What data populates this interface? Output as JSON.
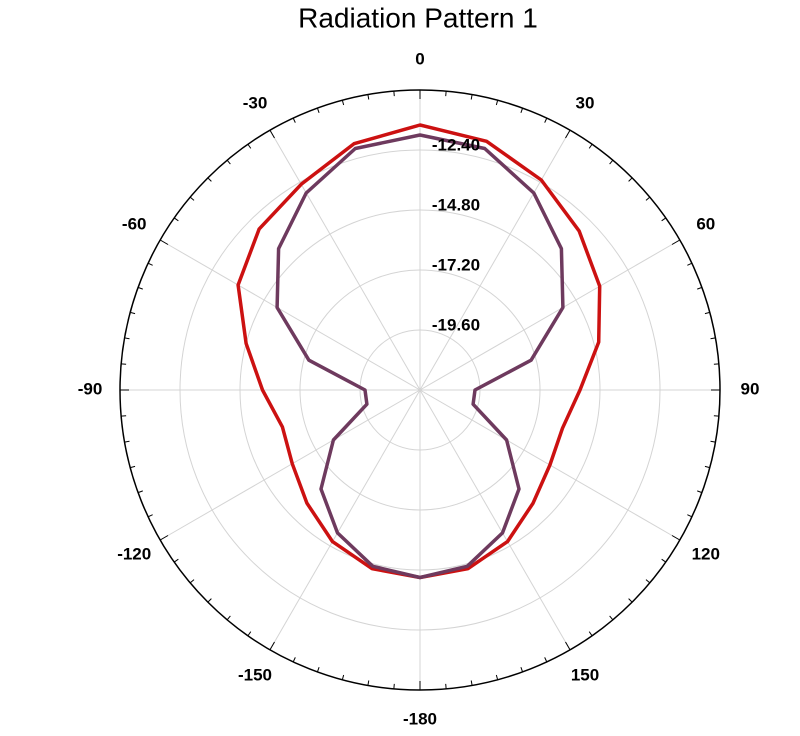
{
  "chart_data": {
    "type": "polar",
    "title": "Radiation Pattern 1",
    "direction": "clockwise",
    "zero": "top",
    "thetaticks": [
      0,
      30,
      60,
      90,
      120,
      150,
      -180,
      -150,
      -120,
      -90,
      -60,
      -30
    ],
    "rlim": [
      -22,
      -10
    ],
    "rticks": [
      {
        "value": -19.6,
        "label": "-19.60"
      },
      {
        "value": -17.2,
        "label": "-17.20"
      },
      {
        "value": -14.8,
        "label": "-14.80"
      },
      {
        "value": -12.4,
        "label": "-12.40"
      }
    ],
    "grid": true,
    "theta": [
      0,
      15,
      30,
      45,
      60,
      75,
      90,
      105,
      120,
      135,
      150,
      165,
      180,
      195,
      210,
      225,
      240,
      255,
      270,
      285,
      300,
      315,
      330,
      345
    ],
    "series": [
      {
        "color": "#cc1111",
        "values": [
          -11.4,
          -11.7,
          -12.3,
          -13.0,
          -13.7,
          -14.6,
          -15.6,
          -16.1,
          -16.0,
          -15.6,
          -15.0,
          -14.6,
          -14.5,
          -14.6,
          -15.0,
          -15.6,
          -16.1,
          -16.3,
          -15.7,
          -14.8,
          -13.6,
          -12.9,
          -12.5,
          -11.8
        ]
      },
      {
        "color": "#6e3a5e",
        "values": [
          -11.8,
          -12.0,
          -12.9,
          -14.0,
          -15.4,
          -17.4,
          -19.8,
          -19.8,
          -18.0,
          -16.4,
          -15.4,
          -14.7,
          -14.5,
          -14.7,
          -15.4,
          -16.4,
          -18.0,
          -19.8,
          -19.8,
          -17.4,
          -15.4,
          -14.0,
          -12.9,
          -12.0
        ]
      }
    ]
  }
}
